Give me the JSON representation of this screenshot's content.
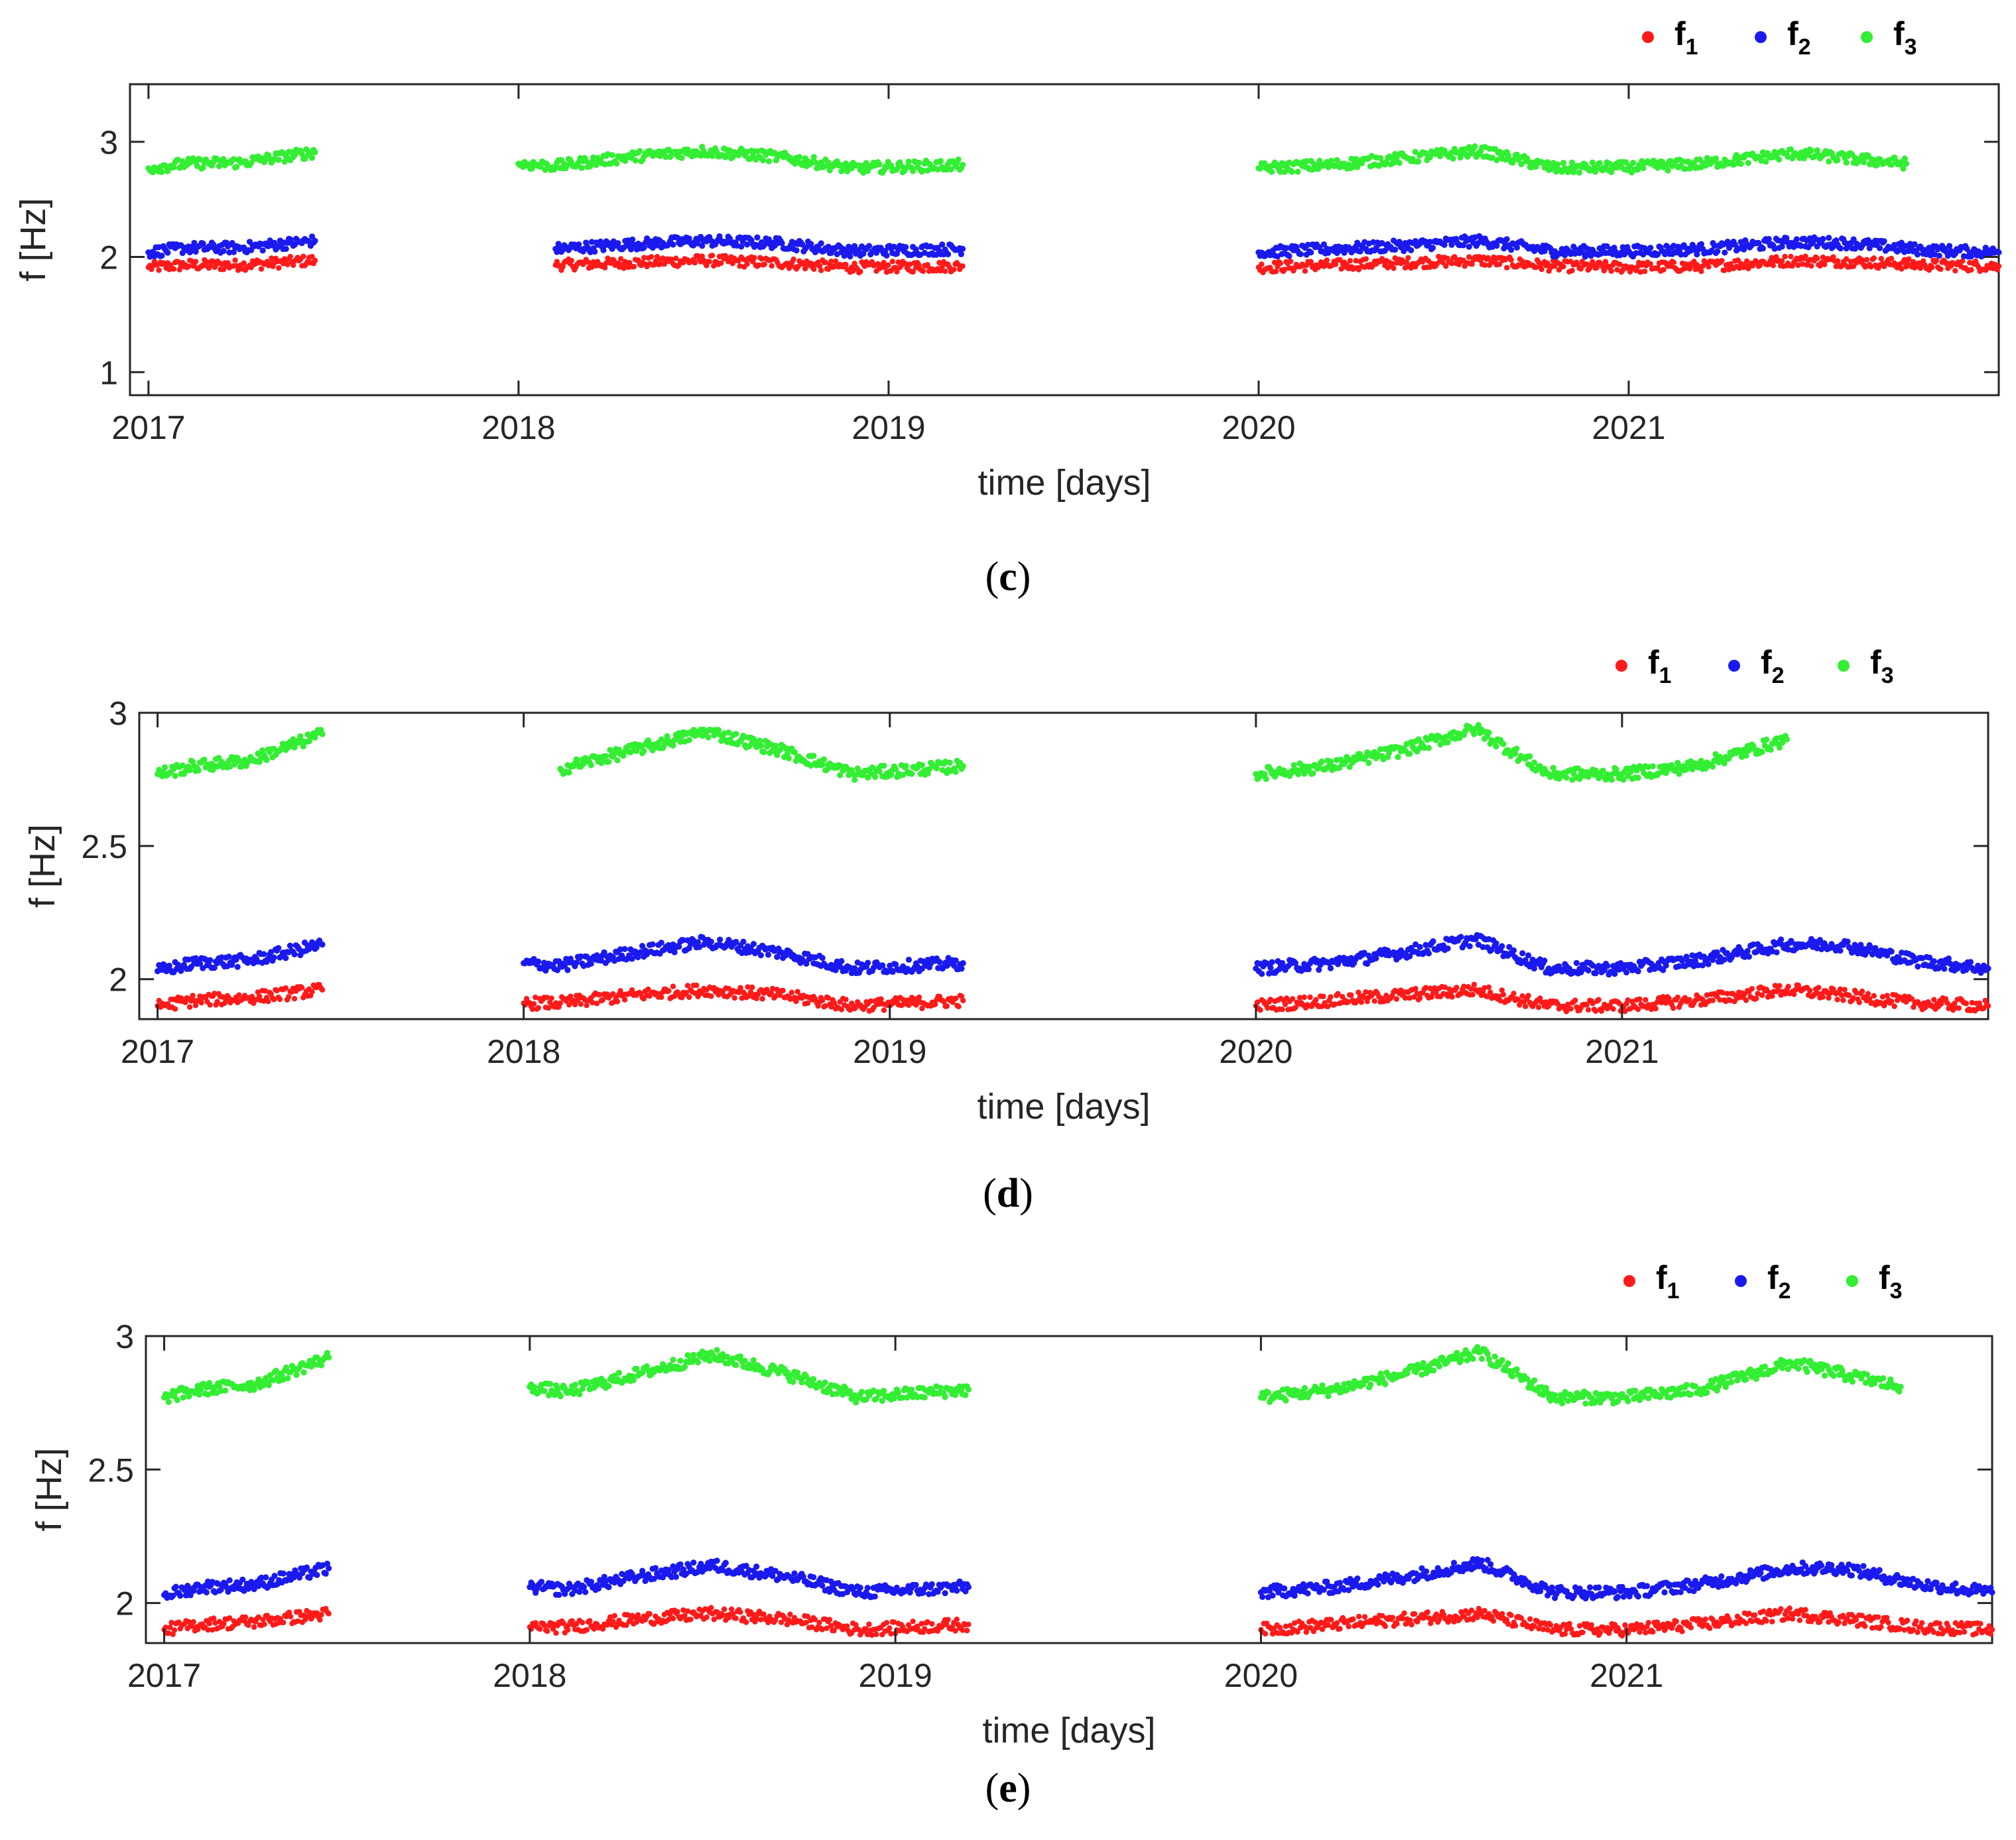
{
  "colors": {
    "f1": "#ff1a1a",
    "f2": "#1a1aee",
    "f3": "#33ee33",
    "axis": "#262626"
  },
  "chart_data": [
    {
      "type": "scatter",
      "caption": "c",
      "xlabel": "time [days]",
      "ylabel": "f [Hz]",
      "ylim": [
        0.8,
        3.5
      ],
      "xlim": [
        2016.95,
        2022.0
      ],
      "x_ticks": [
        "2017",
        "2018",
        "2019",
        "2020",
        "2021"
      ],
      "y_ticks": [
        "1",
        "2",
        "3"
      ],
      "legend": [
        {
          "base": "f",
          "sub": "1"
        },
        {
          "base": "f",
          "sub": "2"
        },
        {
          "base": "f",
          "sub": "3"
        }
      ],
      "legend_position": "top-right, above axes",
      "series": [
        {
          "name": "f1",
          "points": [
            [
              2017.0,
              1.91
            ],
            [
              2017.1,
              1.93
            ],
            [
              2017.25,
              1.93
            ],
            [
              2017.45,
              1.97
            ],
            [
              2018.1,
              1.93
            ],
            [
              2018.3,
              1.95
            ],
            [
              2018.5,
              1.97
            ],
            [
              2018.7,
              1.95
            ],
            [
              2018.9,
              1.91
            ],
            [
              2019.2,
              1.92
            ],
            [
              2020.0,
              1.91
            ],
            [
              2020.2,
              1.93
            ],
            [
              2020.4,
              1.95
            ],
            [
              2020.6,
              1.97
            ],
            [
              2020.8,
              1.92
            ],
            [
              2021.0,
              1.91
            ],
            [
              2021.2,
              1.92
            ],
            [
              2021.45,
              1.97
            ],
            [
              2021.6,
              1.96
            ],
            [
              2021.8,
              1.93
            ],
            [
              2022.0,
              1.92
            ]
          ]
        },
        {
          "name": "f2",
          "points": [
            [
              2017.0,
              2.04
            ],
            [
              2017.1,
              2.08
            ],
            [
              2017.25,
              2.08
            ],
            [
              2017.45,
              2.14
            ],
            [
              2018.1,
              2.07
            ],
            [
              2018.3,
              2.11
            ],
            [
              2018.5,
              2.14
            ],
            [
              2018.7,
              2.12
            ],
            [
              2018.9,
              2.05
            ],
            [
              2019.2,
              2.07
            ],
            [
              2020.0,
              2.04
            ],
            [
              2020.2,
              2.07
            ],
            [
              2020.4,
              2.1
            ],
            [
              2020.6,
              2.14
            ],
            [
              2020.8,
              2.05
            ],
            [
              2021.0,
              2.05
            ],
            [
              2021.2,
              2.07
            ],
            [
              2021.45,
              2.13
            ],
            [
              2021.6,
              2.12
            ],
            [
              2021.8,
              2.06
            ],
            [
              2022.0,
              2.04
            ]
          ]
        },
        {
          "name": "f3",
          "points": [
            [
              2017.0,
              2.77
            ],
            [
              2017.1,
              2.81
            ],
            [
              2017.25,
              2.82
            ],
            [
              2017.45,
              2.91
            ],
            [
              2018.0,
              2.81
            ],
            [
              2018.1,
              2.79
            ],
            [
              2018.3,
              2.87
            ],
            [
              2018.5,
              2.92
            ],
            [
              2018.7,
              2.87
            ],
            [
              2018.9,
              2.77
            ],
            [
              2019.2,
              2.8
            ],
            [
              2020.0,
              2.77
            ],
            [
              2020.2,
              2.8
            ],
            [
              2020.4,
              2.86
            ],
            [
              2020.6,
              2.92
            ],
            [
              2020.8,
              2.77
            ],
            [
              2021.0,
              2.78
            ],
            [
              2021.2,
              2.81
            ],
            [
              2021.45,
              2.9
            ],
            [
              2021.75,
              2.81
            ]
          ]
        }
      ]
    },
    {
      "type": "scatter",
      "caption": "d",
      "xlabel": "time [days]",
      "ylabel": "f [Hz]",
      "ylim": [
        1.85,
        3.0
      ],
      "xlim": [
        2016.95,
        2022.0
      ],
      "x_ticks": [
        "2017",
        "2018",
        "2019",
        "2020",
        "2021"
      ],
      "y_ticks": [
        "2",
        "2.5",
        "3"
      ],
      "legend": [
        {
          "base": "f",
          "sub": "1"
        },
        {
          "base": "f",
          "sub": "2"
        },
        {
          "base": "f",
          "sub": "3"
        }
      ],
      "legend_position": "top-right, above axes",
      "series": [
        {
          "name": "f1",
          "points": [
            [
              2017.0,
              1.9
            ],
            [
              2017.1,
              1.92
            ],
            [
              2017.25,
              1.93
            ],
            [
              2017.45,
              1.96
            ],
            [
              2018.0,
              1.91
            ],
            [
              2018.1,
              1.91
            ],
            [
              2018.3,
              1.94
            ],
            [
              2018.5,
              1.96
            ],
            [
              2018.7,
              1.94
            ],
            [
              2018.9,
              1.9
            ],
            [
              2019.2,
              1.92
            ],
            [
              2020.0,
              1.9
            ],
            [
              2020.2,
              1.92
            ],
            [
              2020.4,
              1.94
            ],
            [
              2020.6,
              1.96
            ],
            [
              2020.8,
              1.9
            ],
            [
              2021.0,
              1.9
            ],
            [
              2021.2,
              1.92
            ],
            [
              2021.45,
              1.96
            ],
            [
              2021.6,
              1.94
            ],
            [
              2021.8,
              1.91
            ],
            [
              2022.0,
              1.9
            ]
          ]
        },
        {
          "name": "f2",
          "points": [
            [
              2017.0,
              2.03
            ],
            [
              2017.1,
              2.06
            ],
            [
              2017.25,
              2.07
            ],
            [
              2017.45,
              2.13
            ],
            [
              2018.0,
              2.06
            ],
            [
              2018.1,
              2.05
            ],
            [
              2018.3,
              2.1
            ],
            [
              2018.5,
              2.14
            ],
            [
              2018.7,
              2.1
            ],
            [
              2018.9,
              2.04
            ],
            [
              2019.2,
              2.06
            ],
            [
              2020.0,
              2.04
            ],
            [
              2020.2,
              2.06
            ],
            [
              2020.4,
              2.1
            ],
            [
              2020.6,
              2.15
            ],
            [
              2020.8,
              2.04
            ],
            [
              2021.0,
              2.04
            ],
            [
              2021.2,
              2.07
            ],
            [
              2021.45,
              2.13
            ],
            [
              2021.6,
              2.13
            ],
            [
              2021.8,
              2.07
            ],
            [
              2022.0,
              2.04
            ]
          ]
        },
        {
          "name": "f3",
          "points": [
            [
              2017.0,
              2.77
            ],
            [
              2017.1,
              2.8
            ],
            [
              2017.25,
              2.82
            ],
            [
              2017.45,
              2.92
            ],
            [
              2018.1,
              2.79
            ],
            [
              2018.3,
              2.86
            ],
            [
              2018.5,
              2.93
            ],
            [
              2018.7,
              2.86
            ],
            [
              2018.9,
              2.77
            ],
            [
              2019.2,
              2.8
            ],
            [
              2020.0,
              2.77
            ],
            [
              2020.2,
              2.8
            ],
            [
              2020.4,
              2.86
            ],
            [
              2020.6,
              2.94
            ],
            [
              2020.8,
              2.77
            ],
            [
              2021.0,
              2.77
            ],
            [
              2021.2,
              2.8
            ],
            [
              2021.45,
              2.9
            ]
          ]
        }
      ]
    },
    {
      "type": "scatter",
      "caption": "e",
      "xlabel": "time [days]",
      "ylabel": "f [Hz]",
      "ylim": [
        1.85,
        3.0
      ],
      "xlim": [
        2016.95,
        2022.0
      ],
      "x_ticks": [
        "2017",
        "2018",
        "2019",
        "2020",
        "2021"
      ],
      "y_ticks": [
        "2",
        "2.5",
        "3"
      ],
      "legend": [
        {
          "base": "f",
          "sub": "1"
        },
        {
          "base": "f",
          "sub": "2"
        },
        {
          "base": "f",
          "sub": "3"
        }
      ],
      "legend_position": "top-right, above axes",
      "series": [
        {
          "name": "f1",
          "points": [
            [
              2017.0,
              1.9
            ],
            [
              2017.1,
              1.92
            ],
            [
              2017.25,
              1.93
            ],
            [
              2017.45,
              1.96
            ],
            [
              2018.0,
              1.91
            ],
            [
              2018.1,
              1.91
            ],
            [
              2018.3,
              1.94
            ],
            [
              2018.5,
              1.96
            ],
            [
              2018.7,
              1.94
            ],
            [
              2018.9,
              1.9
            ],
            [
              2019.2,
              1.92
            ],
            [
              2020.0,
              1.9
            ],
            [
              2020.2,
              1.92
            ],
            [
              2020.4,
              1.94
            ],
            [
              2020.6,
              1.96
            ],
            [
              2020.8,
              1.9
            ],
            [
              2021.0,
              1.9
            ],
            [
              2021.2,
              1.92
            ],
            [
              2021.45,
              1.96
            ],
            [
              2021.6,
              1.94
            ],
            [
              2021.8,
              1.91
            ],
            [
              2022.0,
              1.9
            ]
          ]
        },
        {
          "name": "f2",
          "points": [
            [
              2017.0,
              2.03
            ],
            [
              2017.1,
              2.06
            ],
            [
              2017.25,
              2.07
            ],
            [
              2017.45,
              2.13
            ],
            [
              2018.0,
              2.06
            ],
            [
              2018.1,
              2.05
            ],
            [
              2018.3,
              2.1
            ],
            [
              2018.5,
              2.14
            ],
            [
              2018.7,
              2.1
            ],
            [
              2018.9,
              2.04
            ],
            [
              2019.2,
              2.06
            ],
            [
              2020.0,
              2.04
            ],
            [
              2020.2,
              2.06
            ],
            [
              2020.4,
              2.1
            ],
            [
              2020.6,
              2.15
            ],
            [
              2020.8,
              2.04
            ],
            [
              2021.0,
              2.04
            ],
            [
              2021.2,
              2.07
            ],
            [
              2021.45,
              2.13
            ],
            [
              2021.6,
              2.13
            ],
            [
              2021.8,
              2.07
            ],
            [
              2022.0,
              2.04
            ]
          ]
        },
        {
          "name": "f3",
          "points": [
            [
              2017.0,
              2.77
            ],
            [
              2017.1,
              2.8
            ],
            [
              2017.25,
              2.82
            ],
            [
              2017.45,
              2.92
            ],
            [
              2018.0,
              2.81
            ],
            [
              2018.1,
              2.79
            ],
            [
              2018.3,
              2.86
            ],
            [
              2018.5,
              2.93
            ],
            [
              2018.7,
              2.86
            ],
            [
              2018.9,
              2.77
            ],
            [
              2019.2,
              2.8
            ],
            [
              2020.0,
              2.77
            ],
            [
              2020.2,
              2.8
            ],
            [
              2020.4,
              2.86
            ],
            [
              2020.6,
              2.94
            ],
            [
              2020.8,
              2.77
            ],
            [
              2021.0,
              2.77
            ],
            [
              2021.2,
              2.8
            ],
            [
              2021.45,
              2.9
            ],
            [
              2021.75,
              2.81
            ]
          ]
        }
      ]
    }
  ]
}
